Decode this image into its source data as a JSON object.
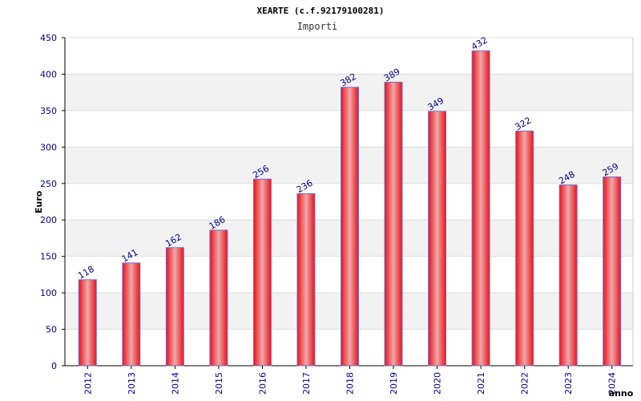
{
  "chart_data": {
    "type": "bar",
    "title": "XEARTE (c.f.92179100281)",
    "subtitle": "Importi",
    "xlabel": "anno",
    "ylabel": "Euro",
    "categories": [
      "2012",
      "2013",
      "2014",
      "2015",
      "2016",
      "2017",
      "2018",
      "2019",
      "2020",
      "2021",
      "2022",
      "2023",
      "2024"
    ],
    "values": [
      118,
      141,
      162,
      186,
      256,
      236,
      382,
      389,
      349,
      432,
      322,
      248,
      259
    ],
    "ylim": [
      0,
      450
    ],
    "yticks": [
      0,
      50,
      100,
      150,
      200,
      250,
      300,
      350,
      400,
      450
    ],
    "grid": true,
    "colors": {
      "bar_dark": "#e8121a",
      "bar_light": "#f0a8a8",
      "bar_edge": "#7a6bd0",
      "axis_text": "#00008b",
      "band": "#f2f2f2",
      "gridline": "#dddddd"
    }
  }
}
